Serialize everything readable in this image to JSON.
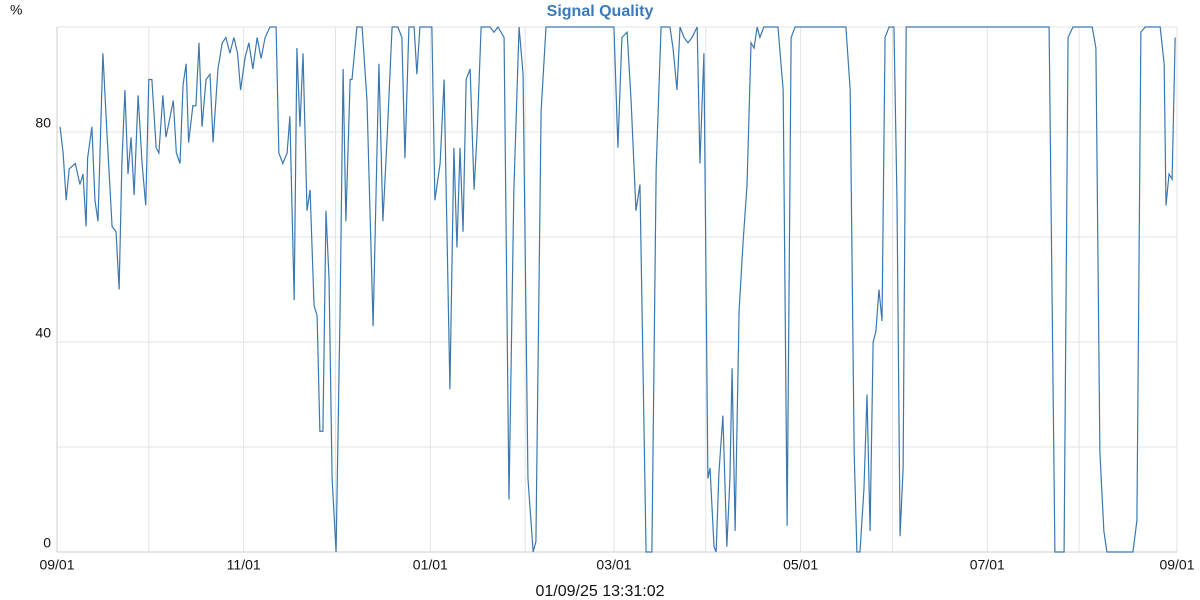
{
  "chart_data": {
    "type": "line",
    "title": "Signal Quality",
    "ylabel": "%",
    "footer": "01/09/25 13:31:02",
    "x": [
      1,
      2,
      3,
      4,
      6,
      7.5,
      8.5,
      9.5,
      10,
      11.4,
      12.4,
      13.4,
      15,
      16.3,
      18,
      19.3,
      20.3,
      21.2,
      22.2,
      23.2,
      24.2,
      25.2,
      26.5,
      27.8,
      29,
      30,
      31,
      32.4,
      33.3,
      34.6,
      35.6,
      37,
      38,
      39,
      40.2,
      41.2,
      42.2,
      43,
      44.4,
      45.4,
      46.4,
      47.4,
      48.7,
      50,
      51,
      52.6,
      54,
      55.2,
      56.5,
      57.8,
      59,
      60,
      61.4,
      62.7,
      64,
      65.4,
      66.7,
      68,
      69.6,
      71.6,
      72.5,
      73.8,
      75.2,
      76.1,
      77.5,
      78.4,
      79.4,
      80.4,
      81.7,
      82.7,
      84,
      85,
      85.9,
      86.9,
      87.9,
      88.9,
      89.9,
      91.2,
      92.5,
      93.5,
      94.4,
      95.8,
      96.4,
      98,
      99.7,
      101.3,
      103.3,
      105.2,
      106.5,
      107.8,
      109.5,
      111.4,
      112.7,
      113.7,
      115,
      116.7,
      117.6,
      118.6,
      122.5,
      123.5,
      125.2,
      126.5,
      128.4,
      129.7,
      130.7,
      131.7,
      132.7,
      133.7,
      135,
      136.3,
      137.3,
      138.6,
      141.5,
      142.8,
      144.1,
      146.1,
      147.7,
      149.3,
      151,
      152.3,
      153.9,
      155.6,
      156.5,
      158.2,
      159.8,
      182,
      183.3,
      184.6,
      186.3,
      187.6,
      189.2,
      190.5,
      192.5,
      194.4,
      195.8,
      197.4,
      200.3,
      201.3,
      202.6,
      203.6,
      204.9,
      206.2,
      207.5,
      209.2,
      210.1,
      211.4,
      212.7,
      213.4,
      214.7,
      215.4,
      216.3,
      217.6,
      218.9,
      219.9,
      220.6,
      221.6,
      222.9,
      224.2,
      225.5,
      226.8,
      227.8,
      228.8,
      229.7,
      231,
      235.6,
      237.3,
      238.6,
      239.9,
      241.2,
      257.8,
      259.2,
      260.5,
      261.4,
      262.4,
      263.7,
      264.7,
      265.7,
      266.7,
      267.6,
      268.6,
      269.6,
      270.6,
      271.9,
      273.5,
      274.5,
      275.5,
      276.5,
      277.5,
      324.2,
      326.1,
      329.1,
      330.4,
      332,
      338.3,
      339.5,
      340.8,
      342.1,
      343.1,
      351.6,
      352.9,
      354.2,
      355.6,
      360.5,
      361.8,
      362.4,
      363.4,
      364.4,
      365.4
    ],
    "series": [
      {
        "name": "Signal Quality",
        "color": "#3b78b0",
        "values": [
          81,
          76,
          67,
          73,
          74,
          70,
          72,
          62,
          75,
          81,
          67,
          63,
          95,
          80,
          62,
          61,
          50,
          74,
          88,
          72,
          79,
          68,
          87,
          74,
          66,
          90,
          90,
          77,
          76,
          87,
          79,
          83,
          86,
          76,
          74,
          89,
          93,
          78,
          85,
          85,
          97,
          81,
          90,
          91,
          78,
          92,
          97,
          98,
          95,
          98,
          95,
          88,
          94,
          97,
          92,
          98,
          94,
          98,
          100,
          100,
          76,
          74,
          76,
          83,
          48,
          96,
          81,
          95,
          65,
          69,
          47,
          45,
          23,
          23,
          65,
          52,
          14,
          0,
          46,
          92,
          63,
          90,
          90,
          100,
          100,
          86,
          43,
          93,
          63,
          78,
          100,
          100,
          98,
          75,
          100,
          100,
          91,
          100,
          100,
          67,
          74,
          90,
          31,
          77,
          58,
          77,
          61,
          90,
          92,
          69,
          80,
          100,
          100,
          99,
          100,
          98,
          10,
          69,
          100,
          91,
          14,
          0,
          2,
          84,
          100,
          100,
          77,
          98,
          99,
          86,
          65,
          70,
          0,
          0,
          73,
          100,
          100,
          96,
          88,
          100,
          98,
          97,
          98,
          100,
          74,
          95,
          14,
          16,
          1,
          0,
          15,
          26,
          1,
          14,
          35,
          4,
          46,
          59,
          70,
          97,
          96,
          100,
          98,
          100,
          100,
          88,
          5,
          98,
          100,
          100,
          88,
          19,
          0,
          0,
          12,
          30,
          4,
          40,
          42,
          50,
          44,
          98,
          100,
          100,
          67,
          3,
          16,
          100,
          100,
          0,
          0,
          98,
          100,
          100,
          96,
          19,
          4,
          0,
          0,
          6,
          99,
          100,
          100,
          93,
          66,
          72,
          71,
          98
        ]
      }
    ],
    "xlim": [
      0,
      366
    ],
    "xticks": [
      {
        "value": 0,
        "label": "09/01"
      },
      {
        "value": 61,
        "label": "11/01"
      },
      {
        "value": 122,
        "label": "01/01"
      },
      {
        "value": 182,
        "label": "03/01"
      },
      {
        "value": 243,
        "label": "05/01"
      },
      {
        "value": 304,
        "label": "07/01"
      },
      {
        "value": 366,
        "label": "09/01"
      }
    ],
    "x_minor_ticks": [
      30,
      91,
      153,
      212,
      273,
      334
    ],
    "ylim": [
      0,
      100
    ],
    "yticks": [
      0,
      40,
      80
    ],
    "y_minor_ticks": [
      20,
      60,
      100
    ],
    "grid": true
  }
}
